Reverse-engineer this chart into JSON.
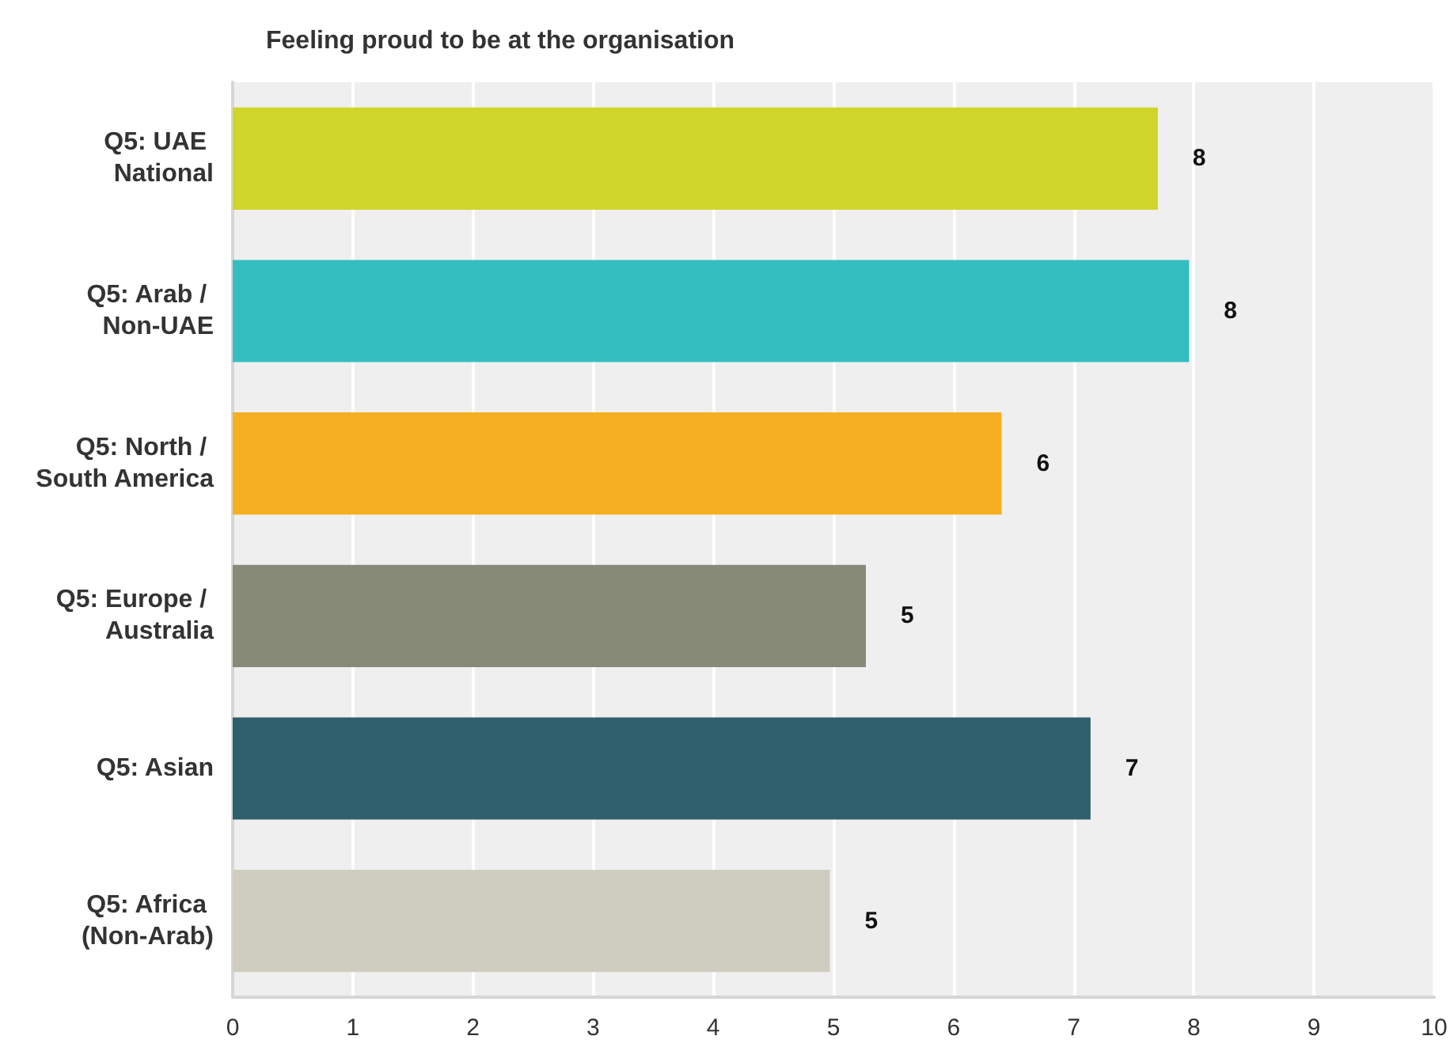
{
  "chart_data": {
    "type": "bar",
    "orientation": "horizontal",
    "title": "Feeling proud to be at the organisation",
    "categories": [
      "Q5: UAE National",
      "Q5: Arab / Non-UAE",
      "Q5: North / South America",
      "Q5: Europe / Australia",
      "Q5: Asian",
      "Q5: Africa (Non-Arab)"
    ],
    "values": [
      7.7,
      7.96,
      6.4,
      5.27,
      7.14,
      4.97
    ],
    "colors": [
      "#cfd52a",
      "#34bec0",
      "#f5af20",
      "#888a78",
      "#2f5f6d",
      "#cfcdbf"
    ],
    "value_labels": [
      "8",
      "8",
      "6",
      "5",
      "7",
      "5"
    ],
    "xlim": [
      0,
      10
    ],
    "xticks": [
      0,
      1,
      2,
      3,
      4,
      5,
      6,
      7,
      8,
      9,
      10
    ],
    "grid": "x"
  }
}
